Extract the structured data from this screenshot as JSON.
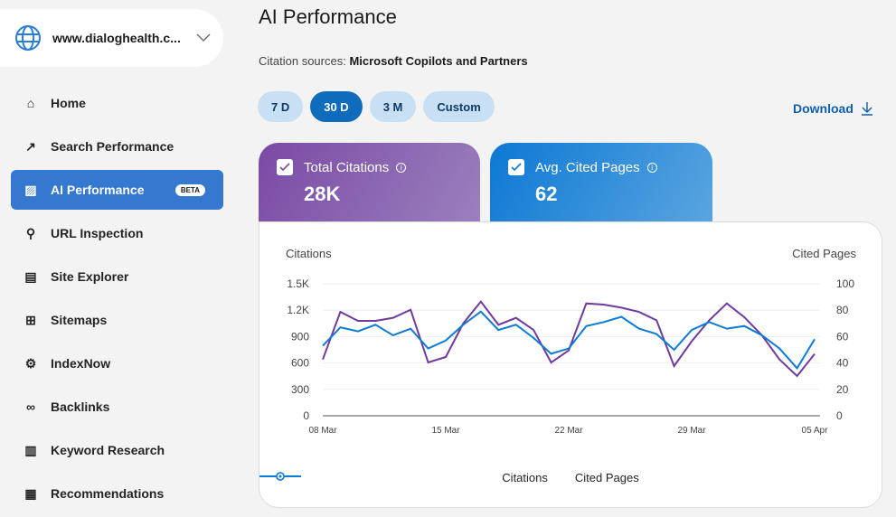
{
  "site": {
    "name": "www.dialoghealth.c...",
    "icon": "globe-icon"
  },
  "sidebar": {
    "items": [
      {
        "label": "Home",
        "icon": "home-icon"
      },
      {
        "label": "Search Performance",
        "icon": "trend-icon"
      },
      {
        "label": "AI Performance",
        "icon": "chart-icon",
        "badge": "BETA",
        "active": true
      },
      {
        "label": "URL Inspection",
        "icon": "search-icon"
      },
      {
        "label": "Site Explorer",
        "icon": "document-icon"
      },
      {
        "label": "Sitemaps",
        "icon": "sitemap-icon"
      },
      {
        "label": "IndexNow",
        "icon": "gear-icon"
      },
      {
        "label": "Backlinks",
        "icon": "link-icon"
      },
      {
        "label": "Keyword Research",
        "icon": "notebook-icon"
      },
      {
        "label": "Recommendations",
        "icon": "clipboard-icon"
      }
    ]
  },
  "header": {
    "title": "AI Performance",
    "source_label": "Citation sources:",
    "source_value": "Microsoft Copilots and Partners",
    "download": "Download"
  },
  "ranges": [
    {
      "label": "7 D"
    },
    {
      "label": "30 D",
      "active": true
    },
    {
      "label": "3 M"
    },
    {
      "label": "Custom"
    }
  ],
  "cards": [
    {
      "label": "Total Citations",
      "value": "28K",
      "checked": true,
      "color": "#7a4aa5"
    },
    {
      "label": "Avg. Cited Pages",
      "value": "62",
      "checked": true,
      "color": "#0d78d4"
    }
  ],
  "chart_data": {
    "type": "line",
    "ylabel_left": "Citations",
    "ylabel_right": "Cited Pages",
    "yticks_left": [
      "0",
      "300",
      "600",
      "900",
      "1.2K",
      "1.5K"
    ],
    "ylim_left": [
      0,
      1500
    ],
    "yticks_right": [
      "0",
      "20",
      "40",
      "60",
      "80",
      "100"
    ],
    "ylim_right": [
      0,
      100
    ],
    "xticks": [
      "08 Mar",
      "15 Mar",
      "22 Mar",
      "29 Mar",
      "05 Apr"
    ],
    "x": [
      "08 Mar",
      "09 Mar",
      "10 Mar",
      "11 Mar",
      "12 Mar",
      "13 Mar",
      "14 Mar",
      "15 Mar",
      "16 Mar",
      "17 Mar",
      "18 Mar",
      "19 Mar",
      "20 Mar",
      "21 Mar",
      "22 Mar",
      "23 Mar",
      "24 Mar",
      "25 Mar",
      "26 Mar",
      "27 Mar",
      "28 Mar",
      "29 Mar",
      "30 Mar",
      "31 Mar",
      "01 Apr",
      "02 Apr",
      "03 Apr",
      "04 Apr",
      "05 Apr"
    ],
    "grid": true,
    "legend": "bottom",
    "series": [
      {
        "name": "Citations",
        "axis": "left",
        "color": "#6f3aa0",
        "values": [
          640,
          1181,
          1079,
          1079,
          1113,
          1205,
          606,
          668,
          1051,
          1298,
          1034,
          1113,
          976,
          606,
          743,
          1277,
          1264,
          1229,
          1181,
          1085,
          565,
          846,
          1085,
          1277,
          1120,
          914,
          640,
          452,
          702
        ]
      },
      {
        "name": "Cited Pages",
        "axis": "right",
        "color": "#0c7bd6",
        "values": [
          53,
          67,
          64,
          69,
          61,
          66,
          51,
          57,
          69,
          79,
          65,
          69,
          59,
          47,
          51,
          68,
          71,
          75,
          66,
          62,
          50,
          65,
          71,
          66,
          68,
          61,
          51,
          36,
          58
        ]
      }
    ]
  }
}
